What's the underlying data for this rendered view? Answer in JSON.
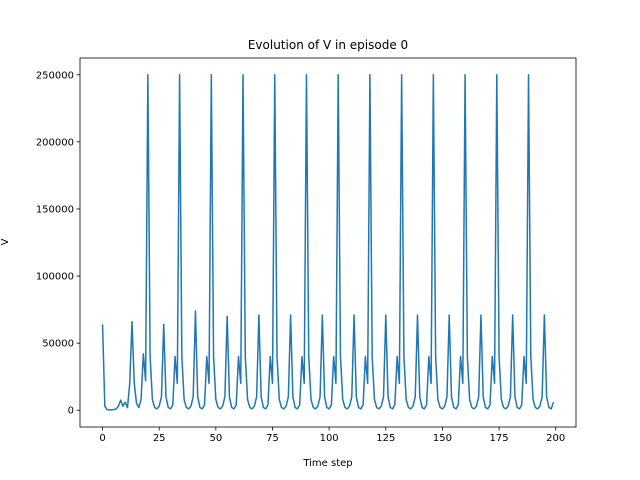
{
  "chart_data": {
    "type": "line",
    "title": "Evolution of V in episode 0",
    "x_label": "Time step",
    "y_label": "V",
    "xlim": [
      -9.95,
      208.95
    ],
    "ylim": [
      -12500,
      262500
    ],
    "xticks": [
      0,
      25,
      50,
      75,
      100,
      125,
      150,
      175,
      200
    ],
    "yticks": [
      0,
      50000,
      100000,
      150000,
      200000,
      250000
    ],
    "x": [
      0,
      1,
      2,
      3,
      4,
      5,
      6,
      7,
      8,
      9,
      10,
      11,
      12,
      13,
      14,
      15,
      16,
      17,
      18,
      19,
      20,
      21,
      22,
      23,
      24,
      25,
      26,
      27,
      28,
      29,
      30,
      31,
      32,
      33,
      34,
      35,
      36,
      37,
      38,
      39,
      40,
      41,
      42,
      43,
      44,
      45,
      46,
      47,
      48,
      49,
      50,
      51,
      52,
      53,
      54,
      55,
      56,
      57,
      58,
      59,
      60,
      61,
      62,
      63,
      64,
      65,
      66,
      67,
      68,
      69,
      70,
      71,
      72,
      73,
      74,
      75,
      76,
      77,
      78,
      79,
      80,
      81,
      82,
      83,
      84,
      85,
      86,
      87,
      88,
      89,
      90,
      91,
      92,
      93,
      94,
      95,
      96,
      97,
      98,
      99,
      100,
      101,
      102,
      103,
      104,
      105,
      106,
      107,
      108,
      109,
      110,
      111,
      112,
      113,
      114,
      115,
      116,
      117,
      118,
      119,
      120,
      121,
      122,
      123,
      124,
      125,
      126,
      127,
      128,
      129,
      130,
      131,
      132,
      133,
      134,
      135,
      136,
      137,
      138,
      139,
      140,
      141,
      142,
      143,
      144,
      145,
      146,
      147,
      148,
      149,
      150,
      151,
      152,
      153,
      154,
      155,
      156,
      157,
      158,
      159,
      160,
      161,
      162,
      163,
      164,
      165,
      166,
      167,
      168,
      169,
      170,
      171,
      172,
      173,
      174,
      175,
      176,
      177,
      178,
      179,
      180,
      181,
      182,
      183,
      184,
      185,
      186,
      187,
      188,
      189,
      190,
      191,
      192,
      193,
      194,
      195,
      196,
      197,
      198,
      199
    ],
    "series": [
      {
        "color": "#1f77b4",
        "values": [
          64000,
          3000,
          500,
          300,
          300,
          500,
          1000,
          3000,
          7500,
          3000,
          6000,
          2000,
          20000,
          66000,
          20000,
          5000,
          2000,
          8000,
          42000,
          22000,
          250000,
          40000,
          8000,
          2000,
          1000,
          3000,
          10000,
          64000,
          10000,
          2000,
          1000,
          4000,
          40000,
          20000,
          250000,
          40000,
          8000,
          2000,
          1000,
          3000,
          10000,
          74000,
          10000,
          2000,
          1000,
          4000,
          40000,
          20000,
          250000,
          40000,
          8000,
          2000,
          1000,
          3000,
          10000,
          70000,
          10000,
          2000,
          1000,
          4000,
          40000,
          20000,
          250000,
          40000,
          8000,
          2000,
          1000,
          3000,
          10000,
          71000,
          10000,
          2000,
          1000,
          4000,
          40000,
          20000,
          250000,
          40000,
          8000,
          2000,
          1000,
          3000,
          10000,
          71000,
          10000,
          2000,
          1000,
          4000,
          40000,
          20000,
          250000,
          40000,
          8000,
          2000,
          1000,
          3000,
          10000,
          71000,
          10000,
          2000,
          1000,
          4000,
          40000,
          20000,
          250000,
          40000,
          8000,
          2000,
          1000,
          3000,
          10000,
          71000,
          10000,
          2000,
          1000,
          4000,
          40000,
          20000,
          250000,
          40000,
          8000,
          2000,
          1000,
          3000,
          10000,
          71000,
          10000,
          2000,
          1000,
          4000,
          40000,
          20000,
          250000,
          40000,
          8000,
          2000,
          1000,
          3000,
          10000,
          71000,
          10000,
          2000,
          1000,
          4000,
          40000,
          20000,
          250000,
          40000,
          8000,
          2000,
          1000,
          3000,
          10000,
          71000,
          10000,
          2000,
          1000,
          4000,
          40000,
          20000,
          250000,
          40000,
          8000,
          2000,
          1000,
          3000,
          10000,
          71000,
          10000,
          2000,
          1000,
          4000,
          40000,
          20000,
          250000,
          40000,
          8000,
          2000,
          1000,
          3000,
          10000,
          71000,
          10000,
          2000,
          1000,
          4000,
          40000,
          20000,
          250000,
          40000,
          8000,
          2000,
          1000,
          3000,
          10000,
          71000,
          10000,
          2000,
          1000,
          6000
        ]
      }
    ]
  }
}
